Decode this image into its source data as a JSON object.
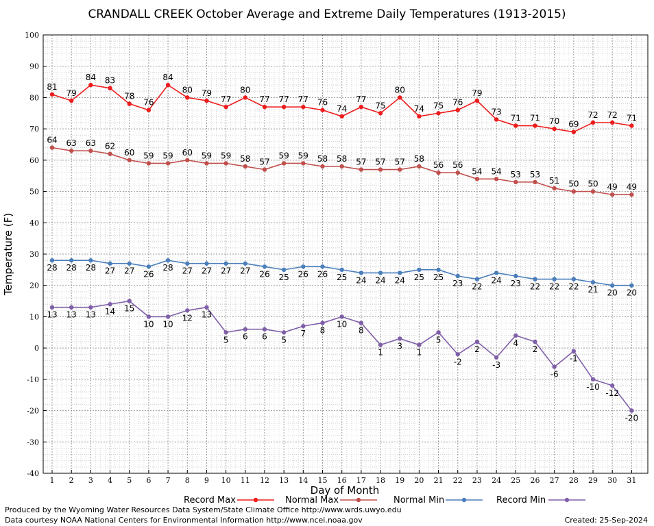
{
  "chart_data": {
    "type": "line",
    "title": "CRANDALL CREEK October Average and Extreme Daily Temperatures (1913-2015)",
    "xlabel": "Day of Month",
    "ylabel": "Temperature (F)",
    "ylim": [
      -40,
      100
    ],
    "yticks": [
      -40,
      -30,
      -20,
      -10,
      0,
      10,
      20,
      30,
      40,
      50,
      60,
      70,
      80,
      90,
      100
    ],
    "x": [
      1,
      2,
      3,
      4,
      5,
      6,
      7,
      8,
      9,
      10,
      11,
      12,
      13,
      14,
      15,
      16,
      17,
      18,
      19,
      20,
      21,
      22,
      23,
      24,
      25,
      26,
      27,
      28,
      29,
      30,
      31
    ],
    "grid": true,
    "legend_position": "bottom",
    "series": [
      {
        "name": "Record Max",
        "color": "#ee1c1c",
        "label_position": "above",
        "values": [
          81,
          79,
          84,
          83,
          78,
          76,
          84,
          80,
          79,
          77,
          80,
          77,
          77,
          77,
          76,
          74,
          77,
          75,
          80,
          74,
          75,
          76,
          79,
          73,
          71,
          71,
          70,
          69,
          72,
          72,
          71
        ]
      },
      {
        "name": "Normal Max",
        "color": "#c0504d",
        "label_position": "above",
        "values": [
          64,
          63,
          63,
          62,
          60,
          59,
          59,
          60,
          59,
          59,
          58,
          57,
          59,
          59,
          58,
          58,
          57,
          57,
          57,
          58,
          56,
          56,
          54,
          54,
          53,
          53,
          51,
          50,
          50,
          49,
          49
        ]
      },
      {
        "name": "Normal Min",
        "color": "#4a7ebb",
        "label_position": "below",
        "values": [
          28,
          28,
          28,
          27,
          27,
          26,
          28,
          27,
          27,
          27,
          27,
          26,
          25,
          26,
          26,
          25,
          24,
          24,
          24,
          25,
          25,
          23,
          22,
          24,
          23,
          22,
          22,
          22,
          21,
          20,
          20
        ]
      },
      {
        "name": "Record Min",
        "color": "#7f5fa8",
        "label_position": "below",
        "values": [
          13,
          13,
          13,
          14,
          15,
          10,
          10,
          12,
          13,
          5,
          6,
          6,
          5,
          7,
          8,
          10,
          8,
          1,
          3,
          1,
          5,
          -2,
          2,
          -3,
          4,
          2,
          -6,
          -1,
          -10,
          -12,
          -20
        ]
      }
    ]
  },
  "footer": {
    "line1": "Produced by the Wyoming Water Resources Data System/State Climate Office http://www.wrds.uwyo.edu",
    "line2": "Data courtesy NOAA National Centers for Environmental Information http://www.ncei.noaa.gov",
    "created": "Created:  25-Sep-2024"
  }
}
